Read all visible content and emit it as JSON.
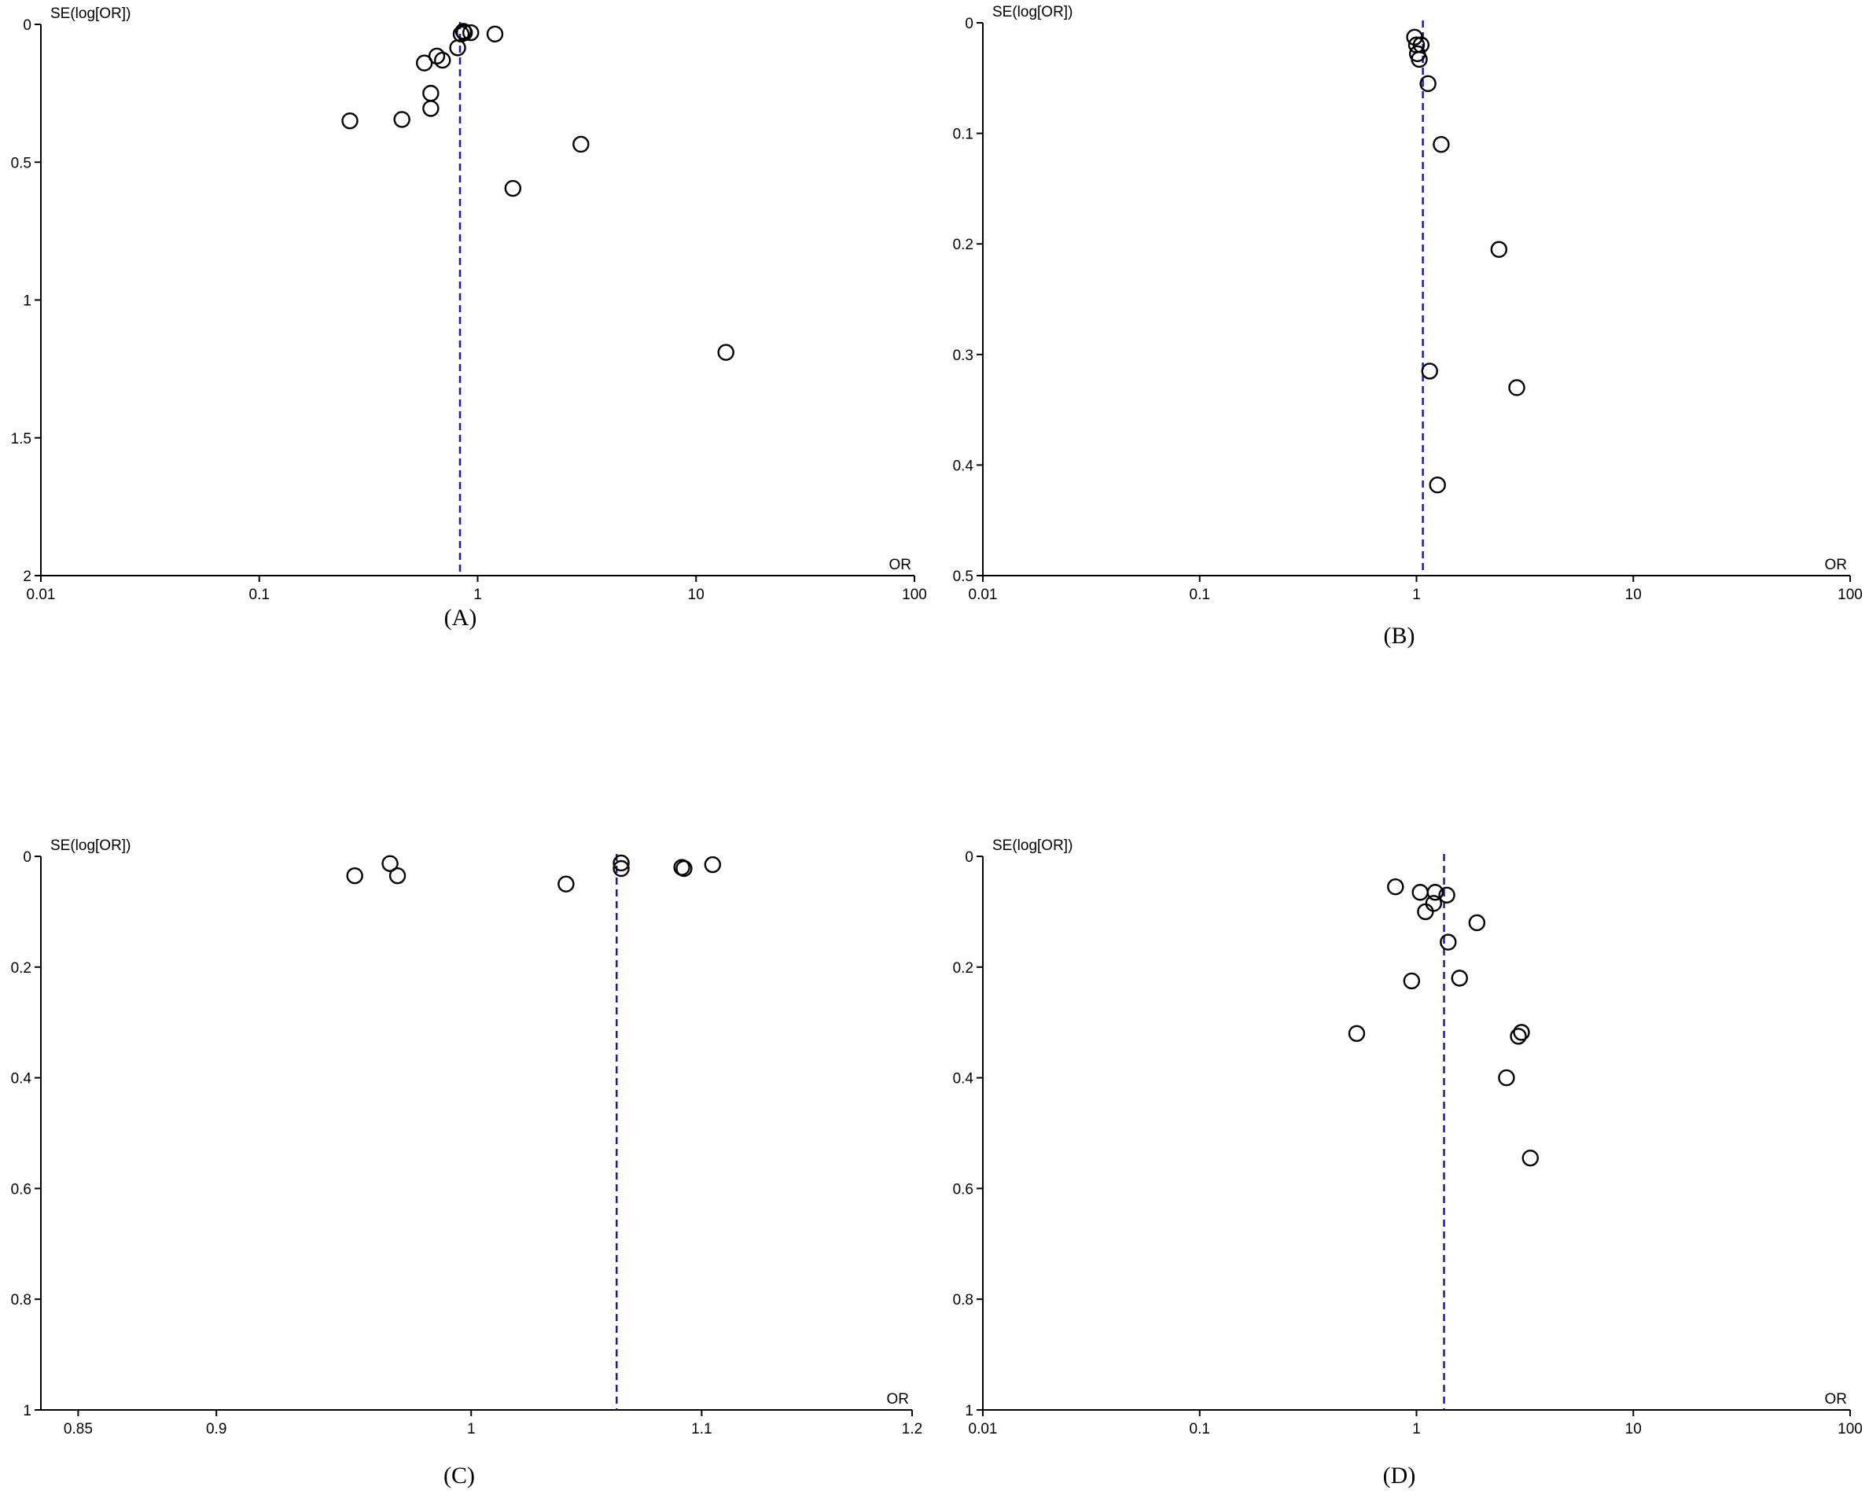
{
  "colors": {
    "axis": "#000000",
    "pooled_line": "#1a1aa6",
    "marker_stroke": "#000000"
  },
  "chart_data": [
    {
      "type": "scatter",
      "panel_label": "(A)",
      "ylabel": "SE(log[OR])",
      "xlabel": "OR",
      "x_scale": "log",
      "xlim": [
        0.01,
        100
      ],
      "ylim": [
        0,
        2
      ],
      "y_inverted": true,
      "x_ticks": [
        0.01,
        0.1,
        1,
        10,
        100
      ],
      "x_tick_labels": [
        "0.01",
        "0.1",
        "1",
        "10",
        "100"
      ],
      "y_ticks": [
        0,
        0.5,
        1,
        1.5,
        2
      ],
      "y_tick_labels": [
        "0",
        "0.5",
        "1",
        "1.5",
        "2"
      ],
      "pooled_or": 0.83,
      "grid": false,
      "marker": "open-circle",
      "points": [
        {
          "x": 0.26,
          "y": 0.35
        },
        {
          "x": 0.45,
          "y": 0.345
        },
        {
          "x": 0.57,
          "y": 0.14
        },
        {
          "x": 0.61,
          "y": 0.25
        },
        {
          "x": 0.61,
          "y": 0.305
        },
        {
          "x": 0.65,
          "y": 0.115
        },
        {
          "x": 0.69,
          "y": 0.13
        },
        {
          "x": 0.81,
          "y": 0.085
        },
        {
          "x": 0.84,
          "y": 0.035
        },
        {
          "x": 0.86,
          "y": 0.025
        },
        {
          "x": 0.87,
          "y": 0.03
        },
        {
          "x": 0.93,
          "y": 0.03
        },
        {
          "x": 1.2,
          "y": 0.035
        },
        {
          "x": 1.45,
          "y": 0.595
        },
        {
          "x": 2.97,
          "y": 0.435
        },
        {
          "x": 13.7,
          "y": 1.19
        }
      ]
    },
    {
      "type": "scatter",
      "panel_label": "(B)",
      "ylabel": "SE(log[OR])",
      "xlabel": "OR",
      "x_scale": "log",
      "xlim": [
        0.01,
        100
      ],
      "ylim": [
        0,
        0.5
      ],
      "y_inverted": true,
      "x_ticks": [
        0.01,
        0.1,
        1,
        10,
        100
      ],
      "x_tick_labels": [
        "0.01",
        "0.1",
        "1",
        "10",
        "100"
      ],
      "y_ticks": [
        0,
        0.1,
        0.2,
        0.3,
        0.4,
        0.5
      ],
      "y_tick_labels": [
        "0",
        "0.1",
        "0.2",
        "0.3",
        "0.4",
        "0.5"
      ],
      "pooled_or": 1.07,
      "grid": false,
      "marker": "open-circle",
      "points": [
        {
          "x": 0.98,
          "y": 0.013
        },
        {
          "x": 1.0,
          "y": 0.02
        },
        {
          "x": 1.05,
          "y": 0.02
        },
        {
          "x": 1.01,
          "y": 0.028
        },
        {
          "x": 1.03,
          "y": 0.033
        },
        {
          "x": 1.13,
          "y": 0.055
        },
        {
          "x": 1.3,
          "y": 0.11
        },
        {
          "x": 2.4,
          "y": 0.205
        },
        {
          "x": 1.15,
          "y": 0.315
        },
        {
          "x": 2.9,
          "y": 0.33
        },
        {
          "x": 1.25,
          "y": 0.418
        }
      ]
    },
    {
      "type": "scatter",
      "panel_label": "(C)",
      "ylabel": "SE(log[OR])",
      "xlabel": "OR",
      "x_scale": "log",
      "xlim": [
        0.837,
        1.2
      ],
      "ylim": [
        0,
        1
      ],
      "y_inverted": true,
      "x_ticks": [
        0.85,
        0.9,
        1,
        1.1,
        1.2
      ],
      "x_tick_labels": [
        "0.85",
        "0.9",
        "1",
        "1.1",
        "1.2"
      ],
      "y_ticks": [
        0,
        0.2,
        0.4,
        0.6,
        0.8,
        1
      ],
      "y_tick_labels": [
        "0",
        "0.2",
        "0.4",
        "0.6",
        "0.8",
        "1"
      ],
      "pooled_or": 1.062,
      "grid": false,
      "marker": "open-circle",
      "points": [
        {
          "x": 0.953,
          "y": 0.035
        },
        {
          "x": 0.967,
          "y": 0.013
        },
        {
          "x": 0.97,
          "y": 0.035
        },
        {
          "x": 1.04,
          "y": 0.05
        },
        {
          "x": 1.064,
          "y": 0.012
        },
        {
          "x": 1.064,
          "y": 0.022
        },
        {
          "x": 1.091,
          "y": 0.02
        },
        {
          "x": 1.092,
          "y": 0.022
        },
        {
          "x": 1.105,
          "y": 0.015
        }
      ]
    },
    {
      "type": "scatter",
      "panel_label": "(D)",
      "ylabel": "SE(log[OR])",
      "xlabel": "OR",
      "x_scale": "log",
      "xlim": [
        0.01,
        100
      ],
      "ylim": [
        0,
        1
      ],
      "y_inverted": true,
      "x_ticks": [
        0.01,
        0.1,
        1,
        10,
        100
      ],
      "x_tick_labels": [
        "0.01",
        "0.1",
        "1",
        "10",
        "100"
      ],
      "y_ticks": [
        0,
        0.2,
        0.4,
        0.6,
        0.8,
        1
      ],
      "y_tick_labels": [
        "0",
        "0.2",
        "0.4",
        "0.6",
        "0.8",
        "1"
      ],
      "pooled_or": 1.34,
      "grid": false,
      "marker": "open-circle",
      "points": [
        {
          "x": 0.53,
          "y": 0.32
        },
        {
          "x": 0.8,
          "y": 0.055
        },
        {
          "x": 0.95,
          "y": 0.225
        },
        {
          "x": 1.04,
          "y": 0.065
        },
        {
          "x": 1.1,
          "y": 0.1
        },
        {
          "x": 1.2,
          "y": 0.085
        },
        {
          "x": 1.22,
          "y": 0.065
        },
        {
          "x": 1.38,
          "y": 0.07
        },
        {
          "x": 1.4,
          "y": 0.155
        },
        {
          "x": 1.58,
          "y": 0.22
        },
        {
          "x": 1.9,
          "y": 0.12
        },
        {
          "x": 2.6,
          "y": 0.4
        },
        {
          "x": 2.95,
          "y": 0.325
        },
        {
          "x": 3.05,
          "y": 0.318
        },
        {
          "x": 3.35,
          "y": 0.545
        }
      ]
    }
  ]
}
